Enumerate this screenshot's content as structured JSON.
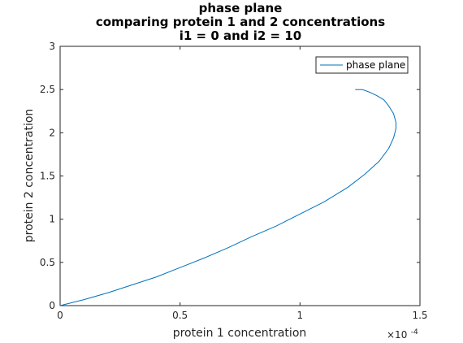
{
  "chart_data": {
    "type": "line",
    "title_lines": [
      "phase plane",
      "comparing protein 1 and 2 concentrations",
      "i1 = 0 and i2 = 10"
    ],
    "xlabel": "protein 1 concentration",
    "ylabel": "protein 2 concentration",
    "xlim": [
      0,
      1.5
    ],
    "ylim": [
      0,
      3
    ],
    "x_scale_exponent_base": "×10",
    "x_scale_exponent_power": "-4",
    "xticks": [
      0,
      0.5,
      1,
      1.5
    ],
    "xtick_labels": [
      "0",
      "0.5",
      "1",
      "1.5"
    ],
    "yticks": [
      0,
      0.5,
      1,
      1.5,
      2,
      2.5,
      3
    ],
    "ytick_labels": [
      "0",
      "0.5",
      "1",
      "1.5",
      "2",
      "2.5",
      "3"
    ],
    "grid": false,
    "legend_position": "top-right",
    "series": [
      {
        "name": "phase plane",
        "color": "#0072BD",
        "x": [
          0,
          0.1,
          0.2,
          0.3,
          0.4,
          0.5,
          0.6,
          0.7,
          0.8,
          0.9,
          1.0,
          1.1,
          1.2,
          1.27,
          1.33,
          1.37,
          1.39,
          1.4,
          1.4,
          1.39,
          1.37,
          1.35,
          1.32,
          1.29,
          1.26,
          1.23
        ],
        "y": [
          0,
          0.07,
          0.15,
          0.24,
          0.33,
          0.44,
          0.55,
          0.67,
          0.8,
          0.92,
          1.06,
          1.2,
          1.37,
          1.52,
          1.67,
          1.82,
          1.94,
          2.05,
          2.12,
          2.22,
          2.31,
          2.38,
          2.43,
          2.47,
          2.5,
          2.5
        ]
      }
    ]
  }
}
